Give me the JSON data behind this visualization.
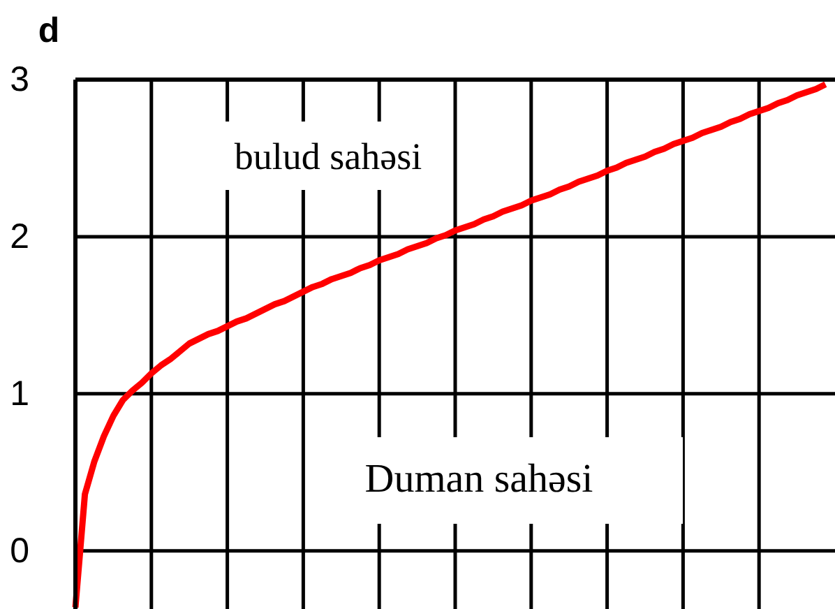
{
  "chart_data": {
    "type": "line",
    "ylabel": "d",
    "categories": [
      null,
      null,
      null,
      null,
      null,
      null,
      null,
      null,
      null,
      null,
      null,
      null,
      null,
      null,
      null,
      null,
      null,
      null,
      null,
      null,
      null,
      null,
      null,
      null,
      null,
      null,
      null,
      null,
      null,
      null,
      null,
      null,
      null,
      null,
      null,
      null,
      null,
      null,
      null,
      null,
      null,
      null,
      null,
      null,
      null,
      null,
      null,
      null,
      null,
      null,
      null,
      null,
      null,
      null,
      null,
      null,
      null,
      null,
      null,
      null,
      null,
      null,
      null,
      null,
      null,
      null,
      null,
      null,
      null,
      null,
      null,
      null,
      null,
      null,
      null,
      null,
      null,
      null,
      null,
      null,
      null
    ],
    "series": [
      {
        "color": "#ff0000",
        "values": [
          -0.36,
          0.36,
          0.57,
          0.73,
          0.86,
          0.96,
          1.02,
          1.07,
          1.13,
          1.18,
          1.22,
          1.27,
          1.32,
          1.35,
          1.38,
          1.4,
          1.43,
          1.46,
          1.48,
          1.51,
          1.54,
          1.57,
          1.59,
          1.62,
          1.65,
          1.68,
          1.7,
          1.73,
          1.75,
          1.77,
          1.8,
          1.82,
          1.85,
          1.87,
          1.89,
          1.92,
          1.94,
          1.96,
          1.99,
          2.01,
          2.04,
          2.06,
          2.08,
          2.11,
          2.13,
          2.16,
          2.18,
          2.2,
          2.23,
          2.25,
          2.27,
          2.3,
          2.32,
          2.35,
          2.37,
          2.39,
          2.42,
          2.44,
          2.47,
          2.49,
          2.51,
          2.54,
          2.56,
          2.59,
          2.61,
          2.63,
          2.66,
          2.68,
          2.7,
          2.73,
          2.75,
          2.78,
          2.8,
          2.82,
          2.85,
          2.87,
          2.9,
          2.92,
          2.94,
          2.97,
          null
        ]
      }
    ],
    "ylim": [
      -0.37,
      3
    ],
    "yticks": [
      0,
      1,
      2,
      3
    ],
    "tick_labels": "y",
    "grid": true,
    "annotations": [
      "bulud sahəsi",
      "Duman sahəsi"
    ]
  }
}
